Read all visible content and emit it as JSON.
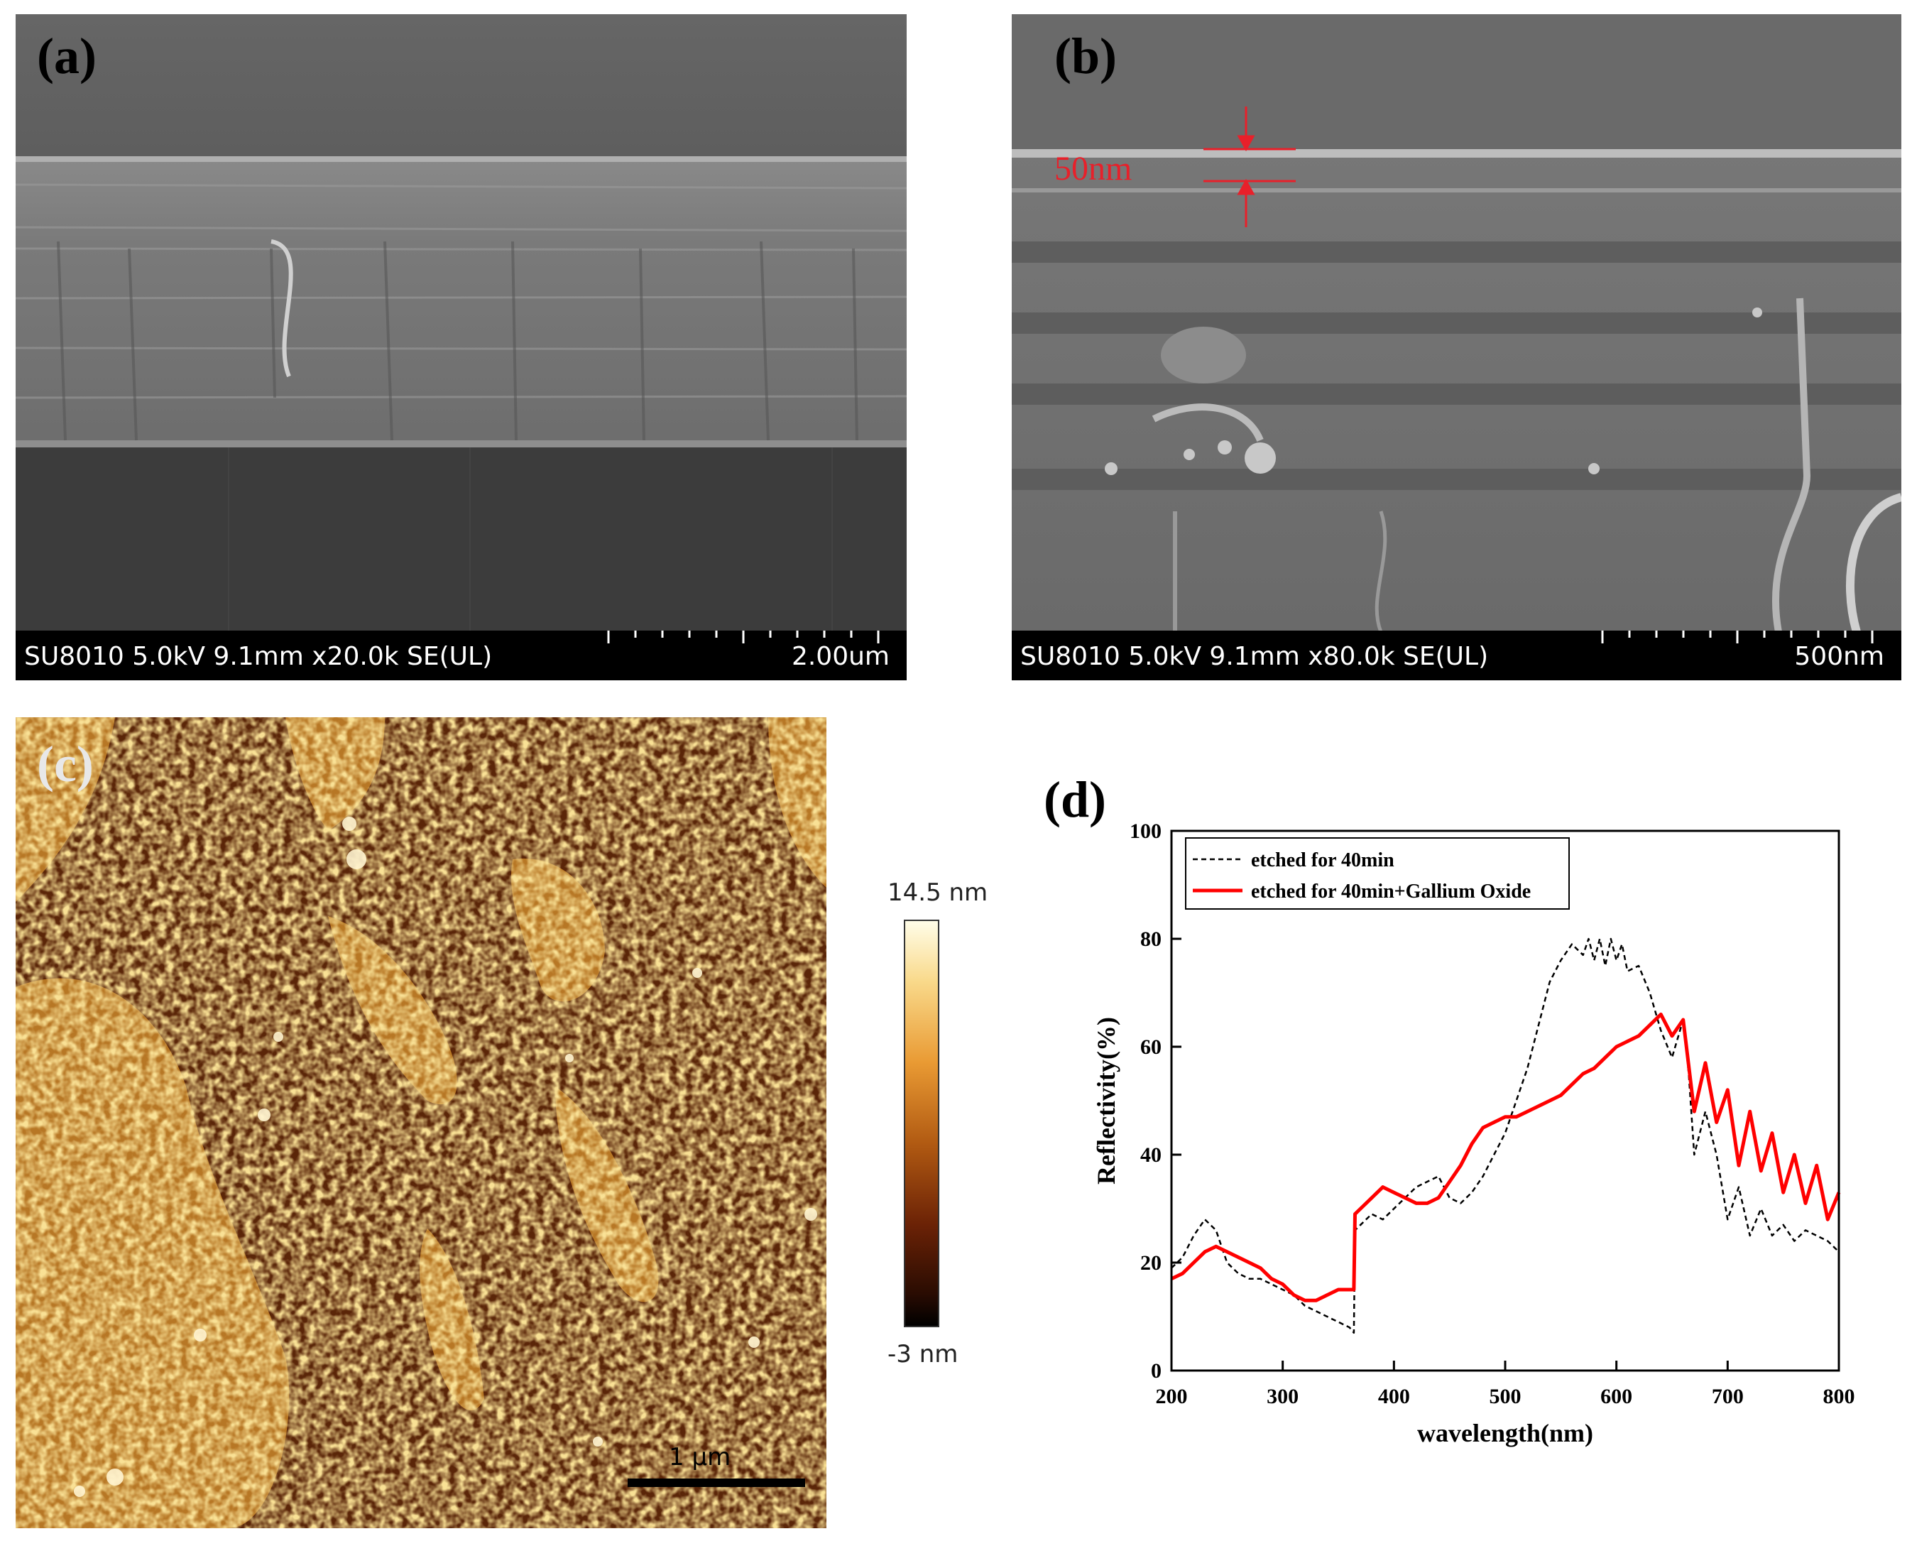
{
  "panel_a": {
    "letter": "(a)",
    "info": "SU8010 5.0kV 9.1mm x20.0k SE(UL)",
    "scale_label": "2.00um"
  },
  "panel_b": {
    "letter": "(b)",
    "info": "SU8010 5.0kV 9.1mm x80.0k SE(UL)",
    "scale_label": "500nm",
    "thickness_annotation": "50nm",
    "annotation_color": "#e8202a"
  },
  "panel_c": {
    "letter": "(c)",
    "scale_label": "1 μm",
    "colorbar_max": "14.5 nm",
    "colorbar_min": "-3 nm"
  },
  "panel_d": {
    "letter": "(d)"
  },
  "chart_data": {
    "type": "line",
    "title": "",
    "xlabel": "wavelength(nm)",
    "ylabel": "Reflectivity(%)",
    "xlim": [
      200,
      800
    ],
    "ylim": [
      0,
      100
    ],
    "xticks": [
      200,
      300,
      400,
      500,
      600,
      700,
      800
    ],
    "yticks": [
      0,
      20,
      40,
      60,
      80,
      100
    ],
    "legend_position": "top-left",
    "series": [
      {
        "name": "etched for 40min",
        "color": "#000000",
        "style": "dashed",
        "x": [
          200,
          210,
          220,
          230,
          240,
          250,
          260,
          270,
          280,
          290,
          300,
          310,
          320,
          330,
          340,
          350,
          360,
          364,
          365,
          370,
          380,
          390,
          400,
          410,
          420,
          430,
          440,
          450,
          460,
          470,
          480,
          490,
          500,
          510,
          520,
          530,
          540,
          550,
          560,
          570,
          575,
          580,
          585,
          590,
          595,
          600,
          605,
          610,
          620,
          630,
          640,
          650,
          660,
          665,
          670,
          680,
          690,
          700,
          710,
          720,
          730,
          740,
          750,
          760,
          770,
          780,
          790,
          800
        ],
        "y": [
          19,
          21,
          25,
          28,
          26,
          20,
          18,
          17,
          17,
          16,
          15,
          14,
          12,
          11,
          10,
          9,
          8,
          7,
          26,
          27,
          29,
          28,
          30,
          32,
          34,
          35,
          36,
          32,
          31,
          33,
          36,
          40,
          44,
          50,
          56,
          64,
          72,
          76,
          79,
          77,
          80,
          76,
          80,
          75,
          80,
          76,
          79,
          74,
          75,
          70,
          63,
          58,
          65,
          55,
          40,
          48,
          40,
          28,
          34,
          25,
          30,
          25,
          27,
          24,
          26,
          25,
          24,
          22
        ]
      },
      {
        "name": "etched for 40min+Gallium Oxide",
        "color": "#ff0000",
        "style": "solid",
        "x": [
          200,
          210,
          220,
          230,
          240,
          250,
          260,
          270,
          280,
          290,
          300,
          310,
          320,
          330,
          340,
          350,
          360,
          364,
          365,
          370,
          380,
          390,
          400,
          410,
          420,
          430,
          440,
          450,
          460,
          470,
          480,
          490,
          500,
          510,
          520,
          530,
          540,
          550,
          560,
          570,
          580,
          590,
          600,
          610,
          620,
          630,
          640,
          650,
          660,
          670,
          680,
          690,
          700,
          710,
          720,
          730,
          740,
          750,
          760,
          770,
          780,
          790,
          800
        ],
        "y": [
          17,
          18,
          20,
          22,
          23,
          22,
          21,
          20,
          19,
          17,
          16,
          14,
          13,
          13,
          14,
          15,
          15,
          15,
          29,
          30,
          32,
          34,
          33,
          32,
          31,
          31,
          32,
          35,
          38,
          42,
          45,
          46,
          47,
          47,
          48,
          49,
          50,
          51,
          53,
          55,
          56,
          58,
          60,
          61,
          62,
          64,
          66,
          62,
          65,
          48,
          57,
          46,
          52,
          38,
          48,
          37,
          44,
          33,
          40,
          31,
          38,
          28,
          33
        ]
      }
    ]
  }
}
